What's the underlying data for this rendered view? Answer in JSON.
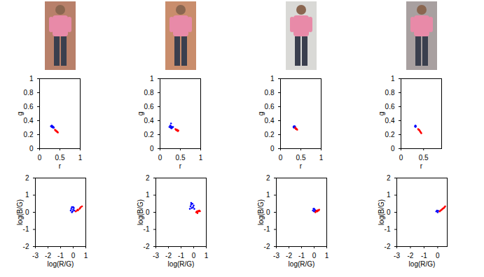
{
  "chart_data": [
    {
      "type": "scatter",
      "xlabel": "r",
      "ylabel": "g",
      "xlim": [
        0,
        1
      ],
      "ylim": [
        0,
        1
      ],
      "xticks": [
        0,
        0.5,
        1
      ],
      "yticks": [
        0,
        0.2,
        0.4,
        0.6,
        0.8,
        1
      ],
      "grid": false,
      "series": [
        {
          "color": "#0000ff",
          "x": [
            0.28,
            0.3,
            0.31,
            0.32,
            0.33,
            0.34,
            0.3,
            0.35
          ],
          "y": [
            0.32,
            0.33,
            0.31,
            0.32,
            0.3,
            0.31,
            0.31,
            0.3
          ]
        },
        {
          "color": "#ff0000",
          "x": [
            0.38,
            0.39,
            0.4,
            0.41,
            0.42,
            0.43,
            0.44,
            0.45
          ],
          "y": [
            0.27,
            0.26,
            0.26,
            0.25,
            0.25,
            0.24,
            0.24,
            0.23
          ]
        }
      ]
    },
    {
      "type": "scatter",
      "xlabel": "r",
      "ylabel": "g",
      "xlim": [
        0,
        1
      ],
      "ylim": [
        0,
        1
      ],
      "xticks": [
        0,
        0.5,
        1
      ],
      "yticks": [
        0,
        0.2,
        0.4,
        0.6,
        0.8,
        1
      ],
      "grid": false,
      "series": [
        {
          "color": "#0000ff",
          "x": [
            0.23,
            0.25,
            0.26,
            0.27,
            0.28,
            0.29,
            0.3,
            0.32,
            0.27
          ],
          "y": [
            0.31,
            0.33,
            0.3,
            0.32,
            0.29,
            0.31,
            0.3,
            0.31,
            0.36
          ]
        },
        {
          "color": "#ff0000",
          "x": [
            0.38,
            0.39,
            0.4,
            0.41,
            0.42,
            0.43,
            0.44,
            0.45
          ],
          "y": [
            0.28,
            0.27,
            0.27,
            0.26,
            0.27,
            0.26,
            0.25,
            0.26
          ]
        }
      ]
    },
    {
      "type": "scatter",
      "xlabel": "r",
      "ylabel": "g",
      "xlim": [
        0,
        1
      ],
      "ylim": [
        0,
        1
      ],
      "xticks": [
        0,
        0.5,
        1
      ],
      "yticks": [
        0,
        0.2,
        0.4,
        0.6,
        0.8,
        1
      ],
      "grid": false,
      "series": [
        {
          "color": "#0000ff",
          "x": [
            0.32,
            0.33,
            0.34,
            0.35,
            0.36,
            0.33,
            0.35
          ],
          "y": [
            0.31,
            0.32,
            0.31,
            0.3,
            0.31,
            0.3,
            0.32
          ]
        },
        {
          "color": "#ff0000",
          "x": [
            0.36,
            0.37,
            0.38,
            0.39,
            0.4,
            0.41,
            0.38
          ],
          "y": [
            0.3,
            0.29,
            0.29,
            0.28,
            0.28,
            0.27,
            0.28
          ]
        }
      ]
    },
    {
      "type": "scatter",
      "xlabel": "r",
      "ylabel": "g",
      "xlim": [
        0,
        0.9
      ],
      "ylim": [
        0,
        1
      ],
      "xticks": [
        0,
        0.5
      ],
      "yticks": [
        0,
        0.2,
        0.4,
        0.6,
        0.8,
        1
      ],
      "grid": false,
      "series": [
        {
          "color": "#0000ff",
          "x": [
            0.31,
            0.32,
            0.33,
            0.32
          ],
          "y": [
            0.32,
            0.33,
            0.32,
            0.31
          ]
        },
        {
          "color": "#ff0000",
          "x": [
            0.38,
            0.39,
            0.4,
            0.41,
            0.42,
            0.43,
            0.44,
            0.45
          ],
          "y": [
            0.28,
            0.27,
            0.27,
            0.26,
            0.25,
            0.24,
            0.23,
            0.22
          ]
        }
      ]
    },
    {
      "type": "scatter",
      "xlabel": "log(R/G)",
      "ylabel": "log(B/G)",
      "xlim": [
        -3,
        1
      ],
      "ylim": [
        -2,
        2
      ],
      "xticks": [
        -3,
        -2,
        -1,
        0,
        1
      ],
      "yticks": [
        -2,
        -1,
        0,
        1,
        2
      ],
      "grid": false,
      "series": [
        {
          "color": "#0000ff",
          "x": [
            -0.2,
            -0.15,
            -0.1,
            -0.05,
            0.0,
            0.05,
            0.1,
            -0.1,
            0.0
          ],
          "y": [
            0.1,
            0.2,
            0.3,
            0.05,
            0.15,
            0.25,
            0.1,
            0.0,
            0.3
          ]
        },
        {
          "color": "#ff0000",
          "x": [
            0.2,
            0.3,
            0.35,
            0.4,
            0.5,
            0.55,
            0.6,
            0.7
          ],
          "y": [
            0.05,
            0.1,
            0.15,
            0.12,
            0.2,
            0.25,
            0.3,
            0.35
          ]
        }
      ]
    },
    {
      "type": "scatter",
      "xlabel": "log(R/G)",
      "ylabel": "log(B/G)",
      "xlim": [
        -3,
        1
      ],
      "ylim": [
        -2,
        2
      ],
      "xticks": [
        -3,
        -2,
        -1,
        0,
        1
      ],
      "yticks": [
        -2,
        -1,
        0,
        1,
        2
      ],
      "grid": false,
      "series": [
        {
          "color": "#0000ff",
          "x": [
            -0.3,
            -0.25,
            -0.2,
            -0.15,
            -0.1,
            -0.05,
            0.0,
            0.05,
            -0.2
          ],
          "y": [
            0.2,
            0.35,
            0.45,
            0.25,
            0.5,
            0.3,
            0.4,
            0.2,
            0.55
          ]
        },
        {
          "color": "#ff0000",
          "x": [
            0.2,
            0.25,
            0.3,
            0.35,
            0.4,
            0.45,
            0.5,
            0.3
          ],
          "y": [
            0.0,
            0.05,
            0.02,
            0.08,
            0.05,
            0.1,
            0.06,
            -0.05
          ]
        }
      ]
    },
    {
      "type": "scatter",
      "xlabel": "log(R/G)",
      "ylabel": "log(B/G)",
      "xlim": [
        -3,
        1
      ],
      "ylim": [
        -2,
        2
      ],
      "xticks": [
        -3,
        -2,
        -1,
        0,
        1
      ],
      "yticks": [
        -2,
        -1,
        0,
        1,
        2
      ],
      "grid": false,
      "series": [
        {
          "color": "#0000ff",
          "x": [
            -0.1,
            -0.05,
            0.0,
            0.05,
            0.1,
            0.0
          ],
          "y": [
            0.1,
            0.2,
            0.05,
            0.15,
            0.1,
            0.2
          ]
        },
        {
          "color": "#ff0000",
          "x": [
            0.1,
            0.15,
            0.2,
            0.25,
            0.3,
            0.35,
            0.4
          ],
          "y": [
            0.0,
            0.05,
            0.1,
            0.05,
            0.12,
            0.1,
            0.15
          ]
        }
      ]
    },
    {
      "type": "scatter",
      "xlabel": "log(R/G)",
      "ylabel": "log(B/G)",
      "xlim": [
        -3,
        0.7
      ],
      "ylim": [
        -2,
        2
      ],
      "xticks": [
        -3,
        -2,
        -1,
        0
      ],
      "yticks": [
        -2,
        -1,
        0,
        1,
        2
      ],
      "grid": false,
      "series": [
        {
          "color": "#0000ff",
          "x": [
            -0.1,
            -0.05,
            0.0,
            0.05
          ],
          "y": [
            0.05,
            0.1,
            0.0,
            0.08
          ]
        },
        {
          "color": "#ff0000",
          "x": [
            0.15,
            0.2,
            0.25,
            0.3,
            0.35,
            0.4,
            0.45,
            0.5,
            0.55
          ],
          "y": [
            0.05,
            0.1,
            0.12,
            0.15,
            0.2,
            0.22,
            0.25,
            0.3,
            0.35
          ]
        }
      ]
    }
  ]
}
